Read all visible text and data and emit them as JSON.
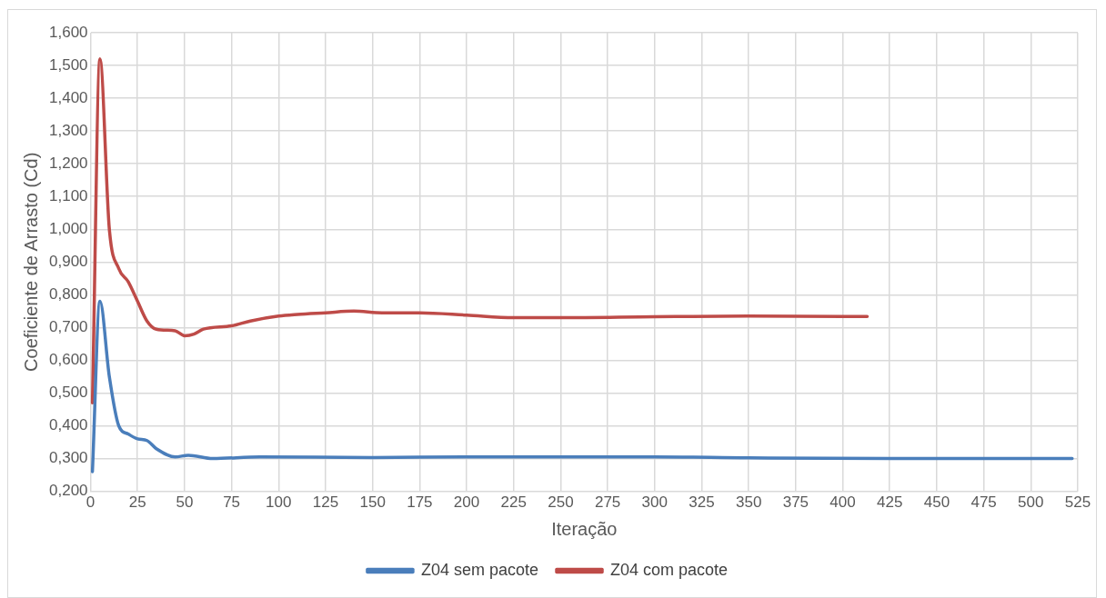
{
  "chart_data": {
    "type": "line",
    "xlabel": "Iteração",
    "ylabel": "Coeficiente de Arrasto (Cd)",
    "xlim": [
      0,
      525
    ],
    "xticks": [
      0,
      25,
      50,
      75,
      100,
      125,
      150,
      175,
      200,
      225,
      250,
      275,
      300,
      325,
      350,
      375,
      400,
      425,
      450,
      475,
      500,
      525
    ],
    "ylim": [
      0.2,
      1.6
    ],
    "yticks": [
      {
        "value": 0.2,
        "label": "0,200"
      },
      {
        "value": 0.3,
        "label": "0,300"
      },
      {
        "value": 0.4,
        "label": "0,400"
      },
      {
        "value": 0.5,
        "label": "0,500"
      },
      {
        "value": 0.6,
        "label": "0,600"
      },
      {
        "value": 0.7,
        "label": "0,700"
      },
      {
        "value": 0.8,
        "label": "0,800"
      },
      {
        "value": 0.9,
        "label": "0,900"
      },
      {
        "value": 1.0,
        "label": "1,000"
      },
      {
        "value": 1.1,
        "label": "1,100"
      },
      {
        "value": 1.2,
        "label": "1,200"
      },
      {
        "value": 1.3,
        "label": "1,300"
      },
      {
        "value": 1.4,
        "label": "1,400"
      },
      {
        "value": 1.5,
        "label": "1,500"
      },
      {
        "value": 1.6,
        "label": "1,600"
      }
    ],
    "grid": true,
    "legend": "bottom",
    "marker": "none",
    "line_style": "solid",
    "series": [
      {
        "name": "Z04 sem pacote",
        "color": "#4a7ebb",
        "x": [
          1,
          5,
          10,
          15,
          20,
          25,
          30,
          35,
          45,
          52,
          65,
          90,
          150,
          200,
          300,
          350,
          425,
          522
        ],
        "values": [
          0.26,
          0.78,
          0.55,
          0.4,
          0.375,
          0.36,
          0.355,
          0.33,
          0.305,
          0.31,
          0.3,
          0.305,
          0.303,
          0.305,
          0.305,
          0.302,
          0.3,
          0.3
        ]
      },
      {
        "name": "Z04 com pacote",
        "color": "#be4b48",
        "x": [
          1,
          5,
          10,
          15,
          20,
          25,
          30,
          35,
          45,
          50,
          55,
          60,
          75,
          85,
          100,
          110,
          125,
          140,
          155,
          175,
          200,
          225,
          250,
          300,
          350,
          400,
          413
        ],
        "values": [
          0.47,
          1.52,
          1.0,
          0.88,
          0.84,
          0.78,
          0.72,
          0.695,
          0.69,
          0.675,
          0.68,
          0.695,
          0.705,
          0.72,
          0.735,
          0.74,
          0.745,
          0.75,
          0.745,
          0.745,
          0.738,
          0.73,
          0.73,
          0.733,
          0.735,
          0.734,
          0.734
        ]
      }
    ]
  }
}
